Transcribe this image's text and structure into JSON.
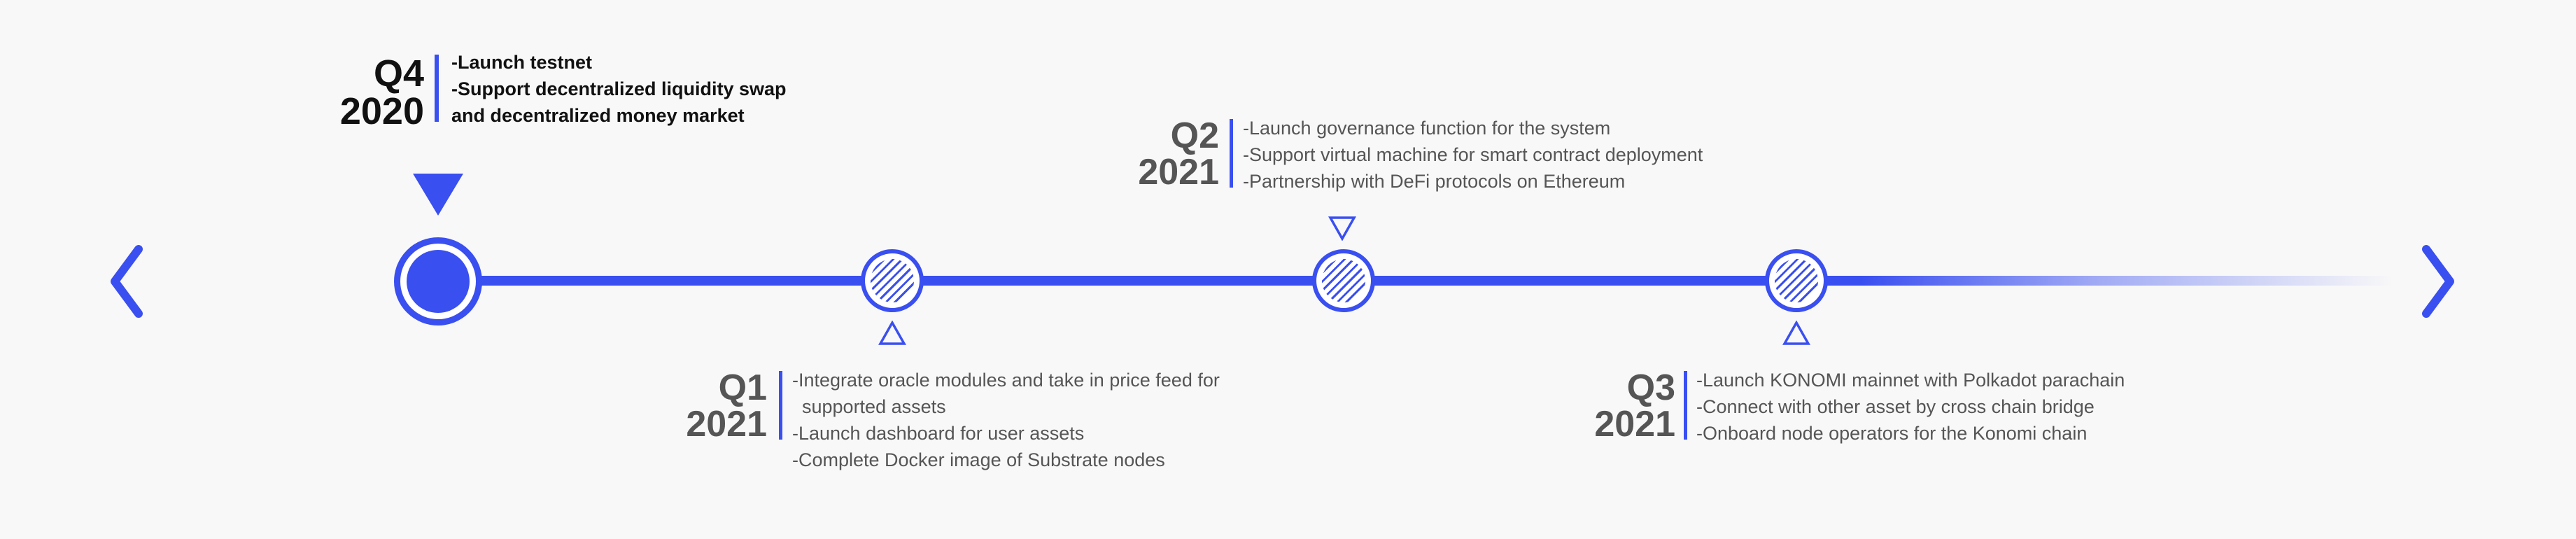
{
  "nav": {
    "prev_icon": "chevron-left-icon",
    "next_icon": "chevron-right-icon"
  },
  "colors": {
    "accent": "#3a4ff0",
    "text_active": "#111111",
    "text_muted": "#555555",
    "background": "#f8f8f8"
  },
  "milestones": [
    {
      "quarter": "Q4",
      "year": "2020",
      "active": true,
      "items": [
        "-Launch testnet",
        "-Support decentralized liquidity swap",
        "and decentralized money market"
      ]
    },
    {
      "quarter": "Q1",
      "year": "2021",
      "active": false,
      "items": [
        "-Integrate oracle modules and take in price feed for",
        "supported assets",
        "-Launch dashboard for user assets",
        "-Complete Docker image of Substrate nodes"
      ]
    },
    {
      "quarter": "Q2",
      "year": "2021",
      "active": false,
      "items": [
        "-Launch governance function for the system",
        "-Support virtual machine for smart contract deployment",
        "-Partnership with DeFi protocols on Ethereum"
      ]
    },
    {
      "quarter": "Q3",
      "year": "2021",
      "active": false,
      "items": [
        "-Launch KONOMI mainnet with Polkadot parachain",
        "-Connect with other asset by cross chain bridge",
        "-Onboard node operators for the Konomi chain"
      ]
    }
  ]
}
